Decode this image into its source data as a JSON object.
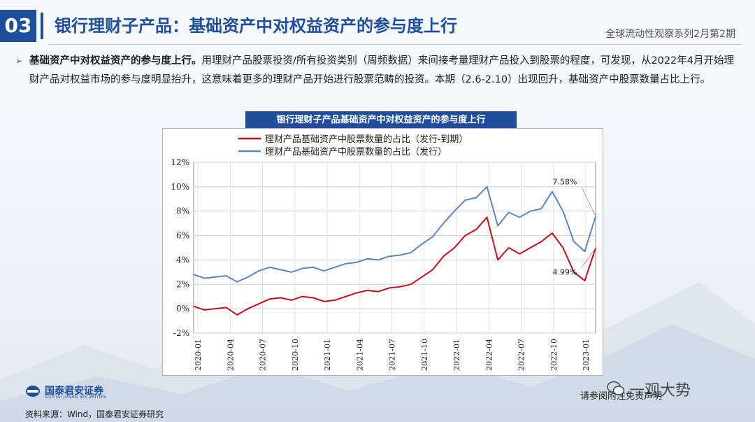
{
  "header": {
    "section_number": "03",
    "title": "银行理财子产品：基础资产中对权益资产的参与度上行",
    "series_name": "全球流动性观察系列2月第2期"
  },
  "bullet": {
    "lead": "基础资产中对权益资产的参与度上行。",
    "body": "用理财产品股票投资/所有投资类别（周频数据）来间接考量理财产品投入到股票的程度，可发现，从2022年4月开始理财产品对权益市场的参与度明显抬升，这意味着更多的理财产品开始进行股票范畴的投资。本期（2.6-2.10）出现回升，基础资产中股票数量占比上行。"
  },
  "footer": {
    "logo_cn": "国泰君安证券",
    "logo_en": "GUOTAI JUNAN SECURITIES",
    "source": "资料来源：Wind，国泰君安证券研究",
    "disclaimer": "请参阅附注免责声明",
    "watermark": "一观大势"
  },
  "colors": {
    "brand": "#1f4e9c",
    "red_series": "#c0101c",
    "blue_series": "#5a86c5"
  },
  "chart_data": {
    "type": "line",
    "title": "银行理财子产品基础资产中对权益资产的参与度上行",
    "ylim": [
      -2,
      12
    ],
    "yticks": [
      "12%",
      "10%",
      "8%",
      "6%",
      "4%",
      "2%",
      "0%",
      "-2%"
    ],
    "xticks": [
      "2020-01",
      "2020-04",
      "2020-07",
      "2020-10",
      "2021-01",
      "2021-04",
      "2021-07",
      "2021-10",
      "2022-01",
      "2022-04",
      "2022-07",
      "2022-10",
      "2023-01"
    ],
    "grid": true,
    "legend": "top",
    "annotations": [
      {
        "text": "7.58%",
        "series": 1
      },
      {
        "text": "4.99%",
        "series": 0
      }
    ],
    "x": [
      "2020-01",
      "2020-02",
      "2020-03",
      "2020-04",
      "2020-05",
      "2020-06",
      "2020-07",
      "2020-08",
      "2020-09",
      "2020-10",
      "2020-11",
      "2020-12",
      "2021-01",
      "2021-02",
      "2021-03",
      "2021-04",
      "2021-05",
      "2021-06",
      "2021-07",
      "2021-08",
      "2021-09",
      "2021-10",
      "2021-11",
      "2021-12",
      "2022-01",
      "2022-02",
      "2022-03",
      "2022-04",
      "2022-05",
      "2022-06",
      "2022-07",
      "2022-08",
      "2022-09",
      "2022-10",
      "2022-11",
      "2022-12",
      "2023-01",
      "2023-02"
    ],
    "series": [
      {
        "name": "理财产品基础资产中股票数量的占比（发行-到期）",
        "values": [
          0.2,
          -0.1,
          0.0,
          0.1,
          -0.5,
          0.0,
          0.4,
          0.8,
          0.9,
          0.7,
          1.0,
          0.9,
          0.6,
          0.7,
          1.0,
          1.3,
          1.5,
          1.4,
          1.7,
          1.8,
          2.0,
          2.6,
          3.2,
          4.3,
          5.0,
          6.0,
          6.5,
          7.5,
          4.0,
          5.0,
          4.5,
          5.0,
          5.5,
          6.2,
          5.0,
          3.0,
          2.3,
          4.99
        ]
      },
      {
        "name": "理财产品基础资产中股票数量的占比（发行）",
        "values": [
          2.8,
          2.5,
          2.6,
          2.7,
          2.2,
          2.6,
          3.1,
          3.4,
          3.2,
          3.0,
          3.3,
          3.4,
          3.1,
          3.4,
          3.7,
          3.8,
          4.1,
          4.0,
          4.3,
          4.4,
          4.6,
          5.3,
          5.9,
          7.0,
          8.0,
          8.9,
          9.1,
          10.0,
          6.8,
          7.9,
          7.5,
          8.0,
          8.2,
          9.6,
          8.0,
          5.5,
          4.7,
          7.58
        ]
      }
    ]
  }
}
